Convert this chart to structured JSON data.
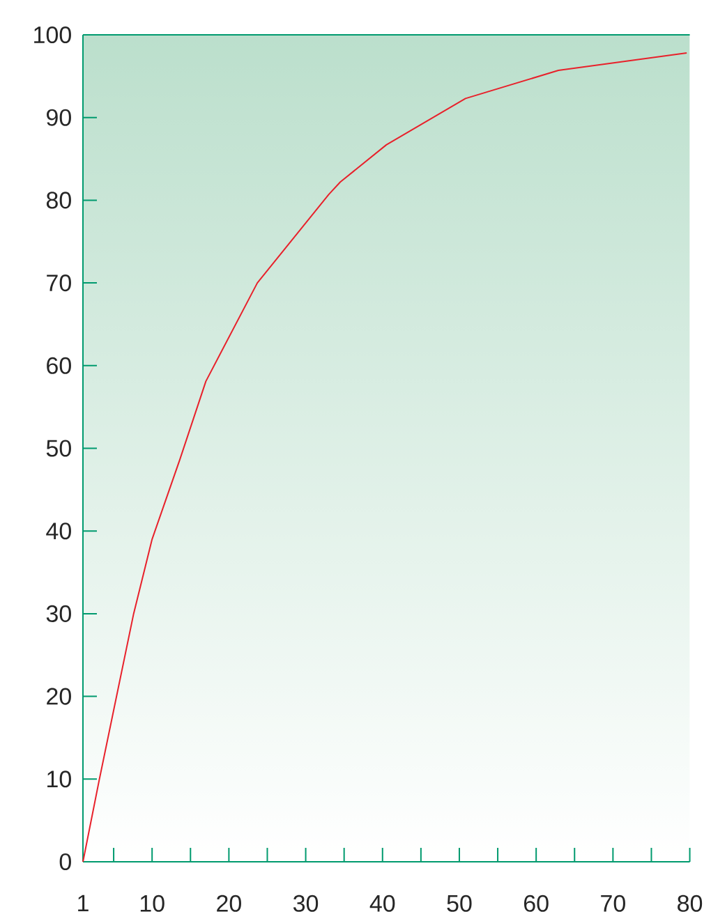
{
  "chart_data": {
    "type": "line",
    "x": [
      1,
      3.1,
      7.6,
      10,
      13.6,
      17,
      23.7,
      33,
      34.5,
      40.5,
      50.8,
      62.9,
      79.6
    ],
    "series": [
      {
        "color": "#e8202a",
        "values": [
          0,
          9.8,
          30,
          39,
          48.6,
          58.1,
          70,
          80.7,
          82.2,
          86.7,
          92.3,
          95.7,
          97.8
        ]
      }
    ],
    "xlim": [
      1,
      80
    ],
    "ylim": [
      0,
      100
    ],
    "xticks": [
      1,
      {
        "value": 5,
        "label": null
      },
      10,
      {
        "value": 15,
        "label": null
      },
      20,
      {
        "value": 25,
        "label": null
      },
      30,
      {
        "value": 35,
        "label": null
      },
      40,
      {
        "value": 45,
        "label": null
      },
      50,
      {
        "value": 55,
        "label": null
      },
      60,
      {
        "value": 65,
        "label": null
      },
      70,
      {
        "value": 75,
        "label": null
      },
      80
    ],
    "yticks": [
      0,
      10,
      20,
      30,
      40,
      50,
      60,
      70,
      80,
      90,
      100
    ]
  }
}
